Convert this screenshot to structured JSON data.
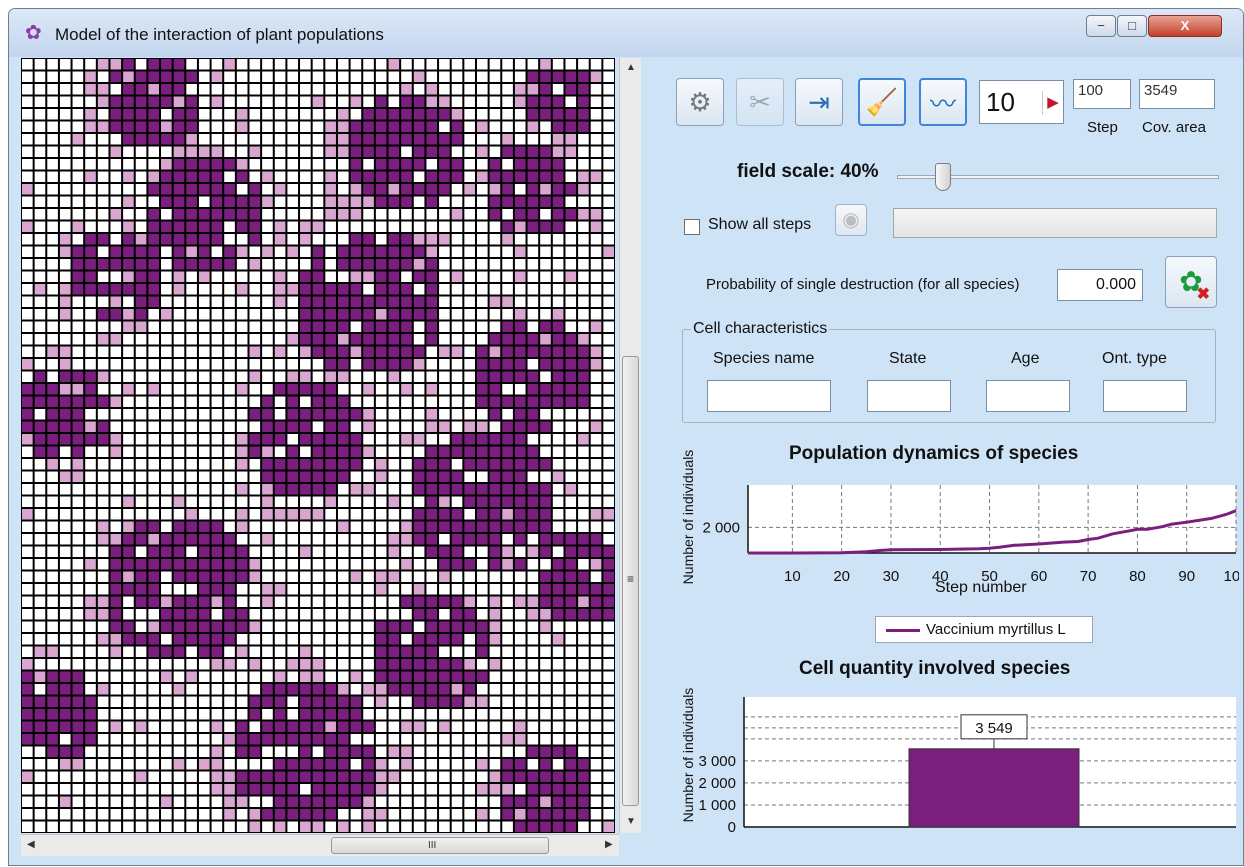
{
  "window": {
    "title": "Model of the interaction of plant populations",
    "icon": "flower-icon",
    "buttons": {
      "minimize": "−",
      "maximize": "□",
      "close": "X"
    }
  },
  "grid": {
    "rows": 62,
    "cols": 47,
    "colors": {
      "empty": "#ffffff",
      "mature": "#7b1f7e",
      "young": "#d8a6cf",
      "line": "#000000"
    }
  },
  "scrollbars": {
    "vertical_arrow_up": "▲",
    "vertical_arrow_down": "▼",
    "vertical_grip": "≡",
    "horizontal_arrow_left": "◀",
    "horizontal_arrow_right": "▶",
    "horizontal_grip": "III"
  },
  "toolbar": {
    "buttons": [
      {
        "icon": "gears-icon",
        "glyph": "⚙"
      },
      {
        "icon": "tools-icon",
        "glyph": "✂"
      },
      {
        "icon": "export-icon",
        "glyph": "⇥"
      },
      {
        "icon": "broom-icon",
        "glyph": "🧹"
      },
      {
        "icon": "chart-window-icon",
        "glyph": "〰"
      }
    ],
    "speed_value": "10",
    "speed_arrow": "▶",
    "step_value": "100",
    "step_label": "Step",
    "area_value": "3549",
    "area_label": "Cov. area"
  },
  "scale": {
    "label": "field scale: 40%",
    "value": 0.12
  },
  "show_steps": {
    "label": "Show all steps",
    "checked": false,
    "record_glyph": "◉"
  },
  "destruction": {
    "label": "Probability of single destruction (for all species)",
    "value": "0.000",
    "button_glyph": "✿",
    "button_x": "✖"
  },
  "cell_characteristics": {
    "title": "Cell characteristics",
    "columns": [
      "Species name",
      "State",
      "Age",
      "Ont. type"
    ],
    "values": [
      "",
      "",
      "",
      ""
    ]
  },
  "chart_data": [
    {
      "type": "line",
      "title": "Population dynamics of species",
      "xlabel": "Step number",
      "ylabel": "Number of individuals",
      "xticks": [
        10,
        20,
        30,
        40,
        50,
        60,
        70,
        80,
        90,
        100
      ],
      "yticks": [
        "2 000"
      ],
      "xlim": [
        1,
        100
      ],
      "ylim": [
        1600,
        2660
      ],
      "grid": true,
      "color": "#7b1f7e",
      "series": [
        {
          "name": "Vaccinium myrtillus L",
          "x": [
            1,
            10,
            20,
            25,
            28,
            30,
            40,
            48,
            50,
            52,
            55,
            60,
            65,
            68,
            70,
            72,
            75,
            78,
            80,
            82,
            85,
            87,
            90,
            95,
            98,
            100
          ],
          "y": [
            1600,
            1600,
            1605,
            1620,
            1640,
            1650,
            1655,
            1665,
            1675,
            1690,
            1720,
            1740,
            1770,
            1780,
            1810,
            1830,
            1900,
            1940,
            1970,
            1970,
            2010,
            2050,
            2080,
            2140,
            2200,
            2260
          ]
        }
      ],
      "legend": "bottom"
    },
    {
      "type": "bar",
      "title": "Cell quantity involved species",
      "ylabel": "Number of individuals",
      "yticks": [
        "3 000",
        "2 000",
        "1 000",
        "0"
      ],
      "ytick_values": [
        3000,
        2000,
        1000,
        0
      ],
      "ylim": [
        0,
        5900
      ],
      "categories": [
        "Vaccinium myrtillus L"
      ],
      "values": [
        3549
      ],
      "data_label": "3 549",
      "grid": true,
      "color": "#7b1f7e"
    }
  ]
}
